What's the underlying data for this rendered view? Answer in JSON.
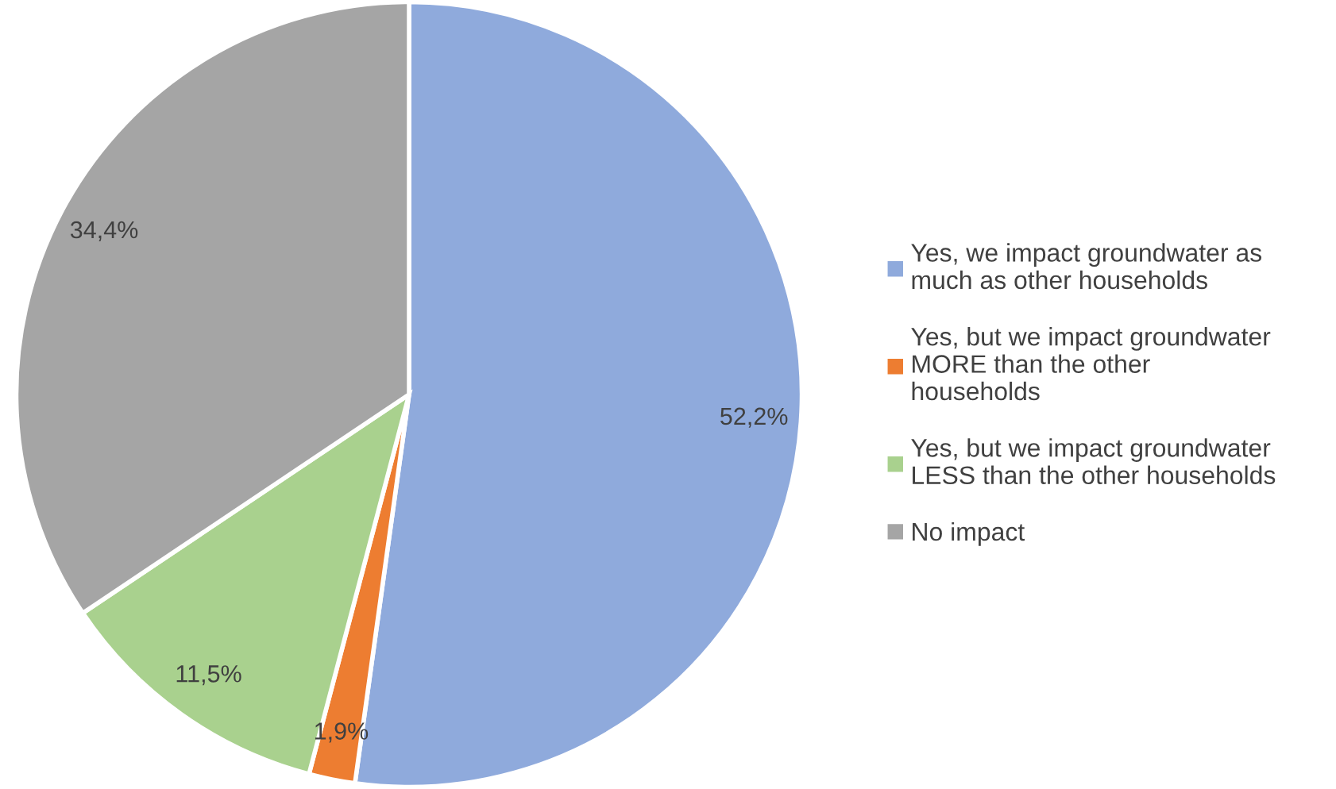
{
  "chart_data": {
    "type": "pie",
    "categories": [
      "Yes, we impact groundwater as\nmuch as other households",
      "Yes, but we impact groundwater\nMORE than the other\nhouseholds",
      "Yes, but we impact groundwater\nLESS than the other households",
      "No impact"
    ],
    "values": [
      52.2,
      1.9,
      11.5,
      34.4
    ],
    "colors": [
      "#8faadc",
      "#ed7d31",
      "#a9d18e",
      "#a5a5a5"
    ],
    "value_labels": [
      "52,2%",
      "1,9%",
      "11,5%",
      "34,4%"
    ],
    "legend": "right"
  }
}
